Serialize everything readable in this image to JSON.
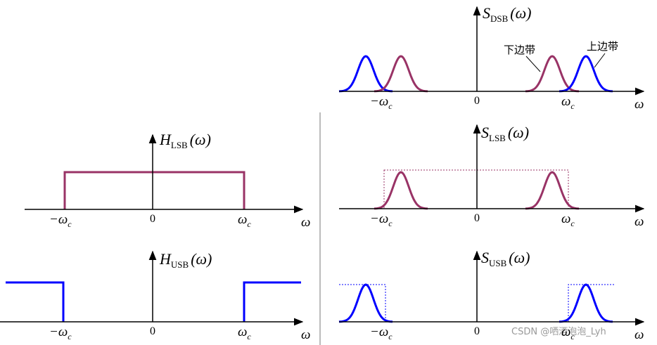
{
  "panels": [
    {
      "name": "S",
      "sub": "DSB",
      "arg": "(ω)",
      "neg": "−ω",
      "pos": "ω",
      "c": "c",
      "zero": "0",
      "axis": "ω"
    },
    {
      "name": "S",
      "sub": "LSB",
      "arg": "(ω)",
      "neg": "−ω",
      "pos": "ω",
      "c": "c",
      "zero": "0",
      "axis": "ω"
    },
    {
      "name": "S",
      "sub": "USB",
      "arg": "(ω)",
      "neg": "−ω",
      "pos": "ω",
      "c": "c",
      "zero": "0",
      "axis": "ω"
    },
    {
      "name": "H",
      "sub": "LSB",
      "arg": "(ω)",
      "neg": "−ω",
      "pos": "ω",
      "c": "c",
      "zero": "0",
      "axis": "ω"
    },
    {
      "name": "H",
      "sub": "USB",
      "arg": "(ω)",
      "neg": "−ω",
      "pos": "ω",
      "c": "c",
      "zero": "0",
      "axis": "ω"
    }
  ],
  "annotations": {
    "lower": "下边带",
    "upper": "上边带"
  },
  "watermark": "CSDN @哂酒泡泡_Lyh"
}
